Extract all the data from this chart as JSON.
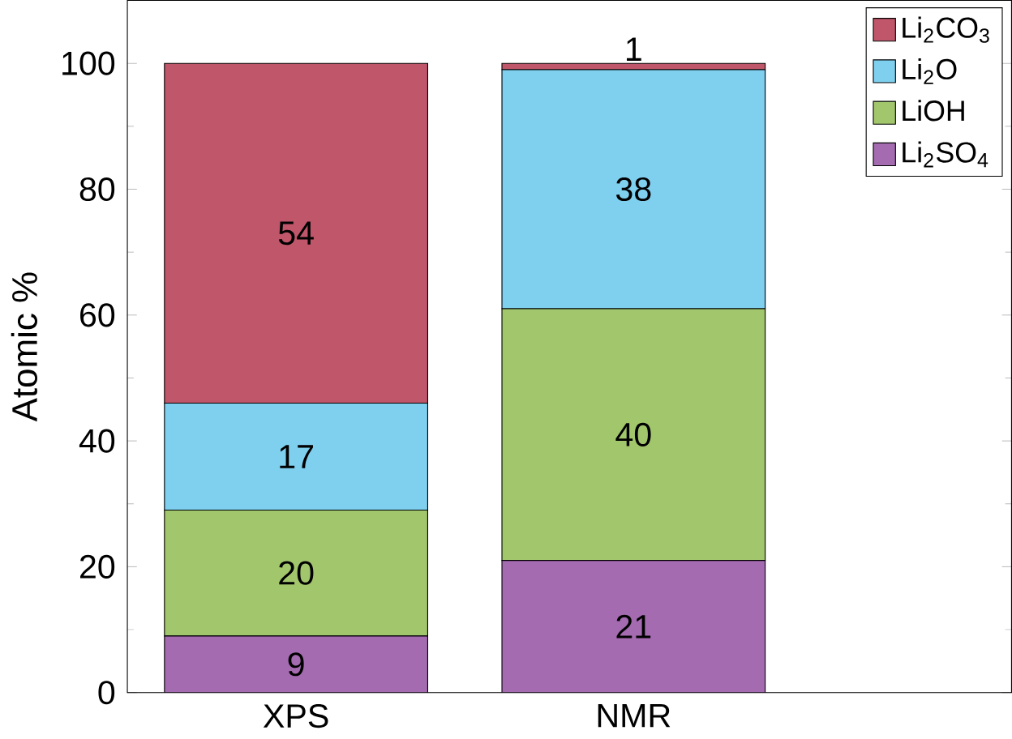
{
  "chart_data": {
    "type": "bar",
    "stacked": true,
    "ylabel": "Atomic %",
    "categories": [
      "XPS",
      "NMR"
    ],
    "series": [
      {
        "name": "Li$_{2}$SO$_{4}$",
        "color": "#a46bb0",
        "values": [
          9,
          21
        ]
      },
      {
        "name": "LiOH",
        "color": "#a2c66c",
        "values": [
          20,
          40
        ]
      },
      {
        "name": "Li$_{2}$O",
        "color": "#7fcfef",
        "values": [
          17,
          38
        ]
      },
      {
        "name": "Li$_{2}$CO$_{3}$",
        "color": "#c0566a",
        "values": [
          54,
          1
        ]
      }
    ],
    "ylim": [
      0,
      110
    ],
    "yticks": [
      0,
      20,
      40,
      60,
      80,
      100
    ],
    "data_labels": true,
    "legend": "top right"
  }
}
